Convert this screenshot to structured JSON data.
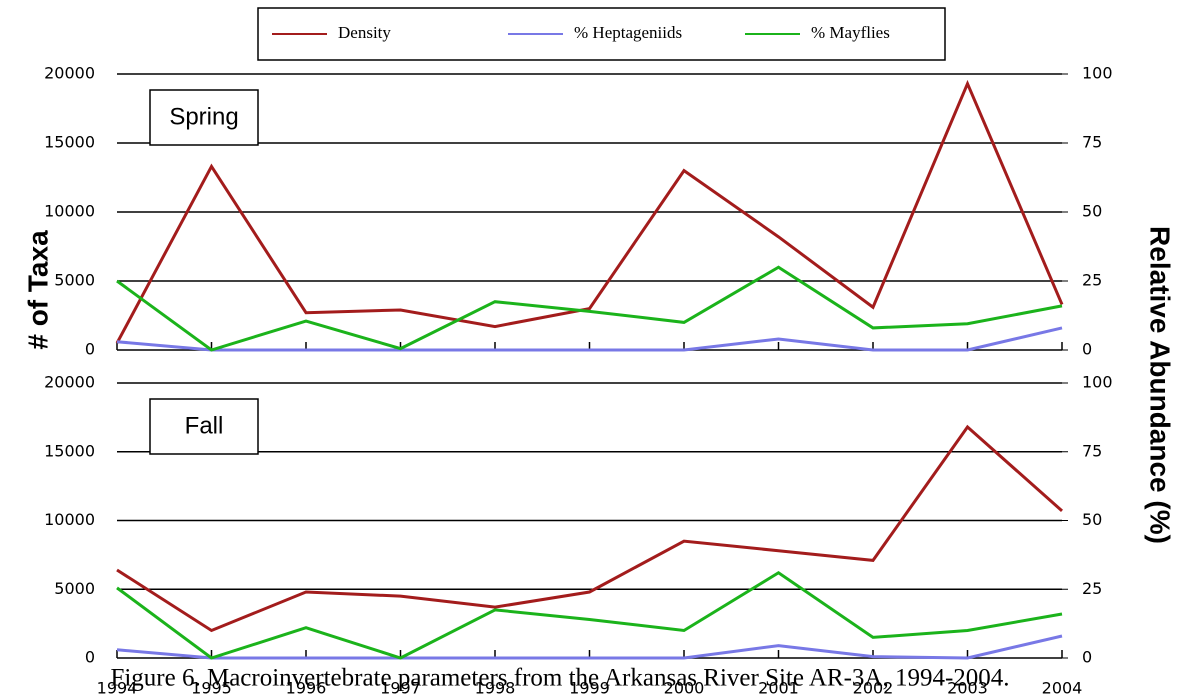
{
  "caption": "Figure 6.   Macroinvertebrate parameters from the Arkansas River Site AR-3A, 1994-2004.",
  "chart_data": [
    {
      "type": "line",
      "title": "Spring",
      "ylabel": "# of Taxa",
      "y2label": "Relative Abundance (%)",
      "x": [
        1994,
        1995,
        1996,
        1997,
        1998,
        1999,
        2000,
        2001,
        2002,
        2003,
        2004
      ],
      "xlim": [
        1994,
        2004
      ],
      "ylim": [
        0,
        20000
      ],
      "yticks": [
        0,
        5000,
        10000,
        15000,
        20000
      ],
      "y2lim": [
        0,
        100
      ],
      "y2ticks": [
        0,
        25,
        50,
        75,
        100
      ],
      "grid": true,
      "series": [
        {
          "name": "Density",
          "color": "#a31c1c",
          "values": [
            500,
            13300,
            2700,
            2900,
            1700,
            3000,
            13000,
            8200,
            3100,
            19300,
            3300
          ]
        },
        {
          "name": "% Heptageniids",
          "color": "#7878e6",
          "axis": "y2",
          "values": [
            3,
            0,
            0,
            0,
            0,
            0,
            0,
            4,
            0,
            0,
            8
          ]
        },
        {
          "name": "% Mayflies",
          "color": "#1bb31b",
          "axis": "y2",
          "values": [
            25,
            0,
            10.5,
            0.5,
            17.5,
            14,
            10,
            30,
            8,
            9.5,
            16
          ]
        }
      ]
    },
    {
      "type": "line",
      "title": "Fall",
      "x": [
        1994,
        1995,
        1996,
        1997,
        1998,
        1999,
        2000,
        2001,
        2002,
        2003,
        2004
      ],
      "xlim": [
        1994,
        2004
      ],
      "ylim": [
        0,
        20000
      ],
      "yticks": [
        0,
        5000,
        10000,
        15000,
        20000
      ],
      "y2lim": [
        0,
        100
      ],
      "y2ticks": [
        0,
        25,
        50,
        75,
        100
      ],
      "grid": true,
      "series": [
        {
          "name": "Density",
          "color": "#a31c1c",
          "values": [
            6400,
            2000,
            4800,
            4500,
            3700,
            4800,
            8500,
            7800,
            7100,
            16800,
            10700
          ]
        },
        {
          "name": "% Heptageniids",
          "color": "#7878e6",
          "axis": "y2",
          "values": [
            3,
            0,
            0,
            0,
            0,
            0,
            0,
            4.5,
            0.5,
            0,
            8
          ]
        },
        {
          "name": "% Mayflies",
          "color": "#1bb31b",
          "axis": "y2",
          "values": [
            25.5,
            0,
            11,
            0,
            17.5,
            14,
            10,
            31,
            7.5,
            10,
            16
          ]
        }
      ]
    }
  ]
}
